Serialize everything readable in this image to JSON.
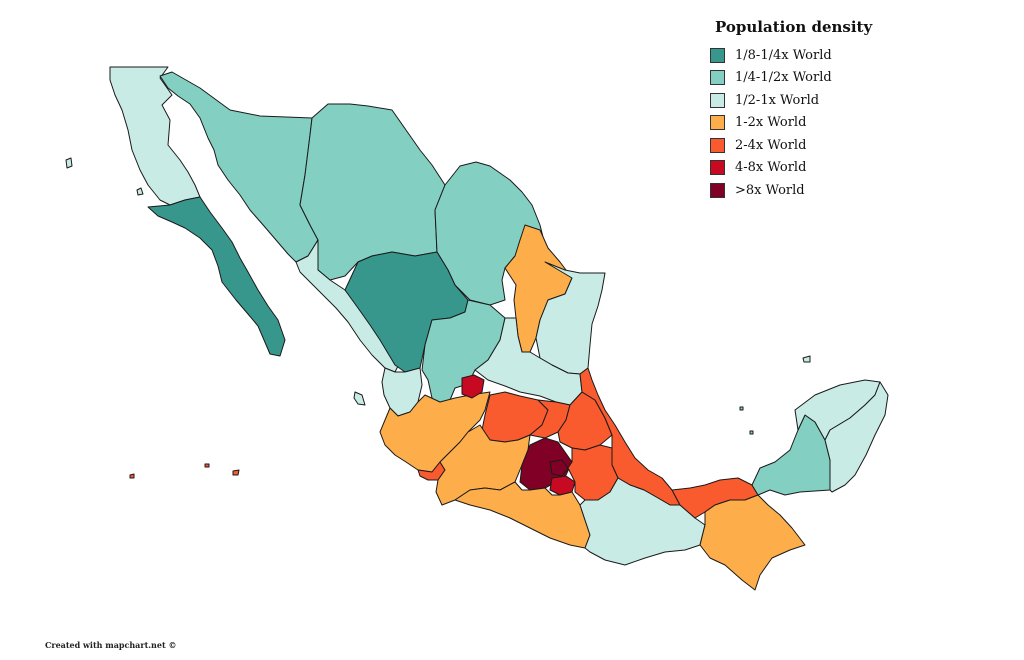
{
  "legend": {
    "title": "Population density",
    "items": [
      {
        "key": "c1",
        "label": "1/8-1/4x World",
        "color": "#37978c"
      },
      {
        "key": "c2",
        "label": "1/4-1/2x World",
        "color": "#83cfc2"
      },
      {
        "key": "c3",
        "label": "1/2-1x World",
        "color": "#c8ebe5"
      },
      {
        "key": "c4",
        "label": "1-2x World",
        "color": "#fdae4b"
      },
      {
        "key": "c5",
        "label": "2-4x World",
        "color": "#f95a2e"
      },
      {
        "key": "c6",
        "label": "4-8x World",
        "color": "#c70a22"
      },
      {
        "key": "c7",
        "label": ">8x World",
        "color": "#800026"
      }
    ]
  },
  "credit": "Created with mapchart.net ©",
  "states": [
    {
      "name": "Baja California",
      "category": "c3"
    },
    {
      "name": "Baja California Sur",
      "category": "c1"
    },
    {
      "name": "Sonora",
      "category": "c2"
    },
    {
      "name": "Chihuahua",
      "category": "c2"
    },
    {
      "name": "Coahuila",
      "category": "c2"
    },
    {
      "name": "Nuevo León",
      "category": "c4"
    },
    {
      "name": "Tamaulipas",
      "category": "c3"
    },
    {
      "name": "Sinaloa",
      "category": "c3"
    },
    {
      "name": "Durango",
      "category": "c1"
    },
    {
      "name": "Zacatecas",
      "category": "c2"
    },
    {
      "name": "San Luis Potosí",
      "category": "c3"
    },
    {
      "name": "Nayarit",
      "category": "c3"
    },
    {
      "name": "Aguascalientes",
      "category": "c6"
    },
    {
      "name": "Jalisco",
      "category": "c4"
    },
    {
      "name": "Guanajuato",
      "category": "c5"
    },
    {
      "name": "Querétaro",
      "category": "c5"
    },
    {
      "name": "Hidalgo",
      "category": "c5"
    },
    {
      "name": "Veracruz",
      "category": "c5"
    },
    {
      "name": "Colima",
      "category": "c5"
    },
    {
      "name": "Michoacán",
      "category": "c4"
    },
    {
      "name": "Estado de México",
      "category": "c7"
    },
    {
      "name": "Ciudad de México",
      "category": "c7"
    },
    {
      "name": "Morelos",
      "category": "c6"
    },
    {
      "name": "Tlaxcala",
      "category": "c6"
    },
    {
      "name": "Puebla",
      "category": "c5"
    },
    {
      "name": "Guerrero",
      "category": "c4"
    },
    {
      "name": "Oaxaca",
      "category": "c3"
    },
    {
      "name": "Tabasco",
      "category": "c5"
    },
    {
      "name": "Chiapas",
      "category": "c4"
    },
    {
      "name": "Campeche",
      "category": "c2"
    },
    {
      "name": "Yucatán",
      "category": "c3"
    },
    {
      "name": "Quintana Roo",
      "category": "c3"
    },
    {
      "name": "Revillagigedo Islands",
      "category": "c5"
    },
    {
      "name": "Islas Marías",
      "category": "c3"
    }
  ]
}
